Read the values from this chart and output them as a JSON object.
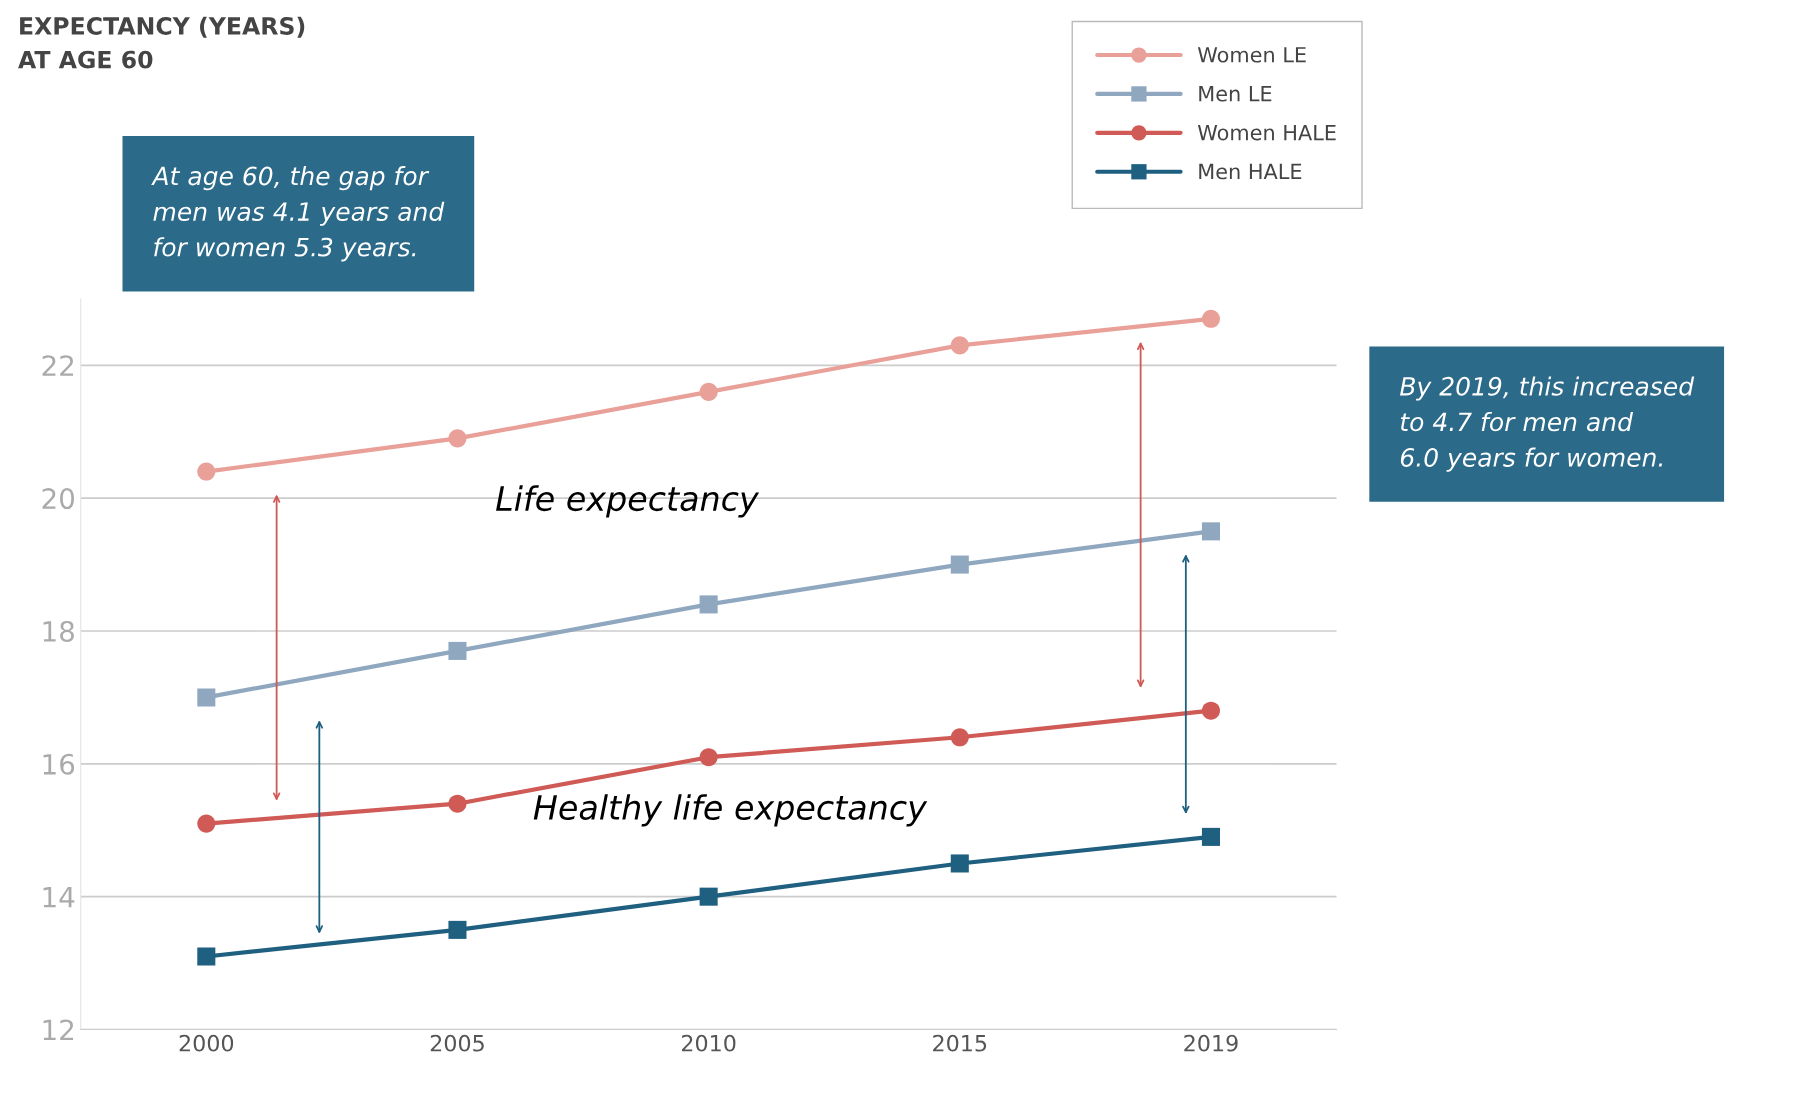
{
  "chart_data": {
    "type": "line",
    "title": "EXPECTANCY (YEARS)\nAT AGE 60",
    "categories": [
      "2000",
      "2005",
      "2010",
      "2015",
      "2019"
    ],
    "series": [
      {
        "name": "Women LE",
        "color": "#e8a098",
        "marker": "circle",
        "values": [
          20.4,
          20.9,
          21.6,
          22.3,
          22.7
        ]
      },
      {
        "name": "Men LE",
        "color": "#8fa8bf",
        "marker": "square",
        "values": [
          17.0,
          17.7,
          18.4,
          19.0,
          19.5
        ]
      },
      {
        "name": "Women HALE",
        "color": "#d05a55",
        "marker": "circle",
        "values": [
          15.1,
          15.4,
          16.1,
          16.4,
          16.8
        ]
      },
      {
        "name": "Men HALE",
        "color": "#1f5f80",
        "marker": "square",
        "values": [
          13.1,
          13.5,
          14.0,
          14.5,
          14.9
        ]
      }
    ],
    "ylim": [
      12,
      23
    ],
    "yticks": [
      12,
      14,
      16,
      18,
      20,
      22
    ],
    "grid": "y",
    "legend": "top right",
    "line_style": "solid",
    "annotations": [
      "At age 60, the gap for\nmen was 4.1 years and\nfor women 5.3 years.",
      "By 2019, this increased\nto 4.7 for men and\n6.0 years for women.",
      "Life expectancy",
      "Healthy life expectancy"
    ]
  }
}
